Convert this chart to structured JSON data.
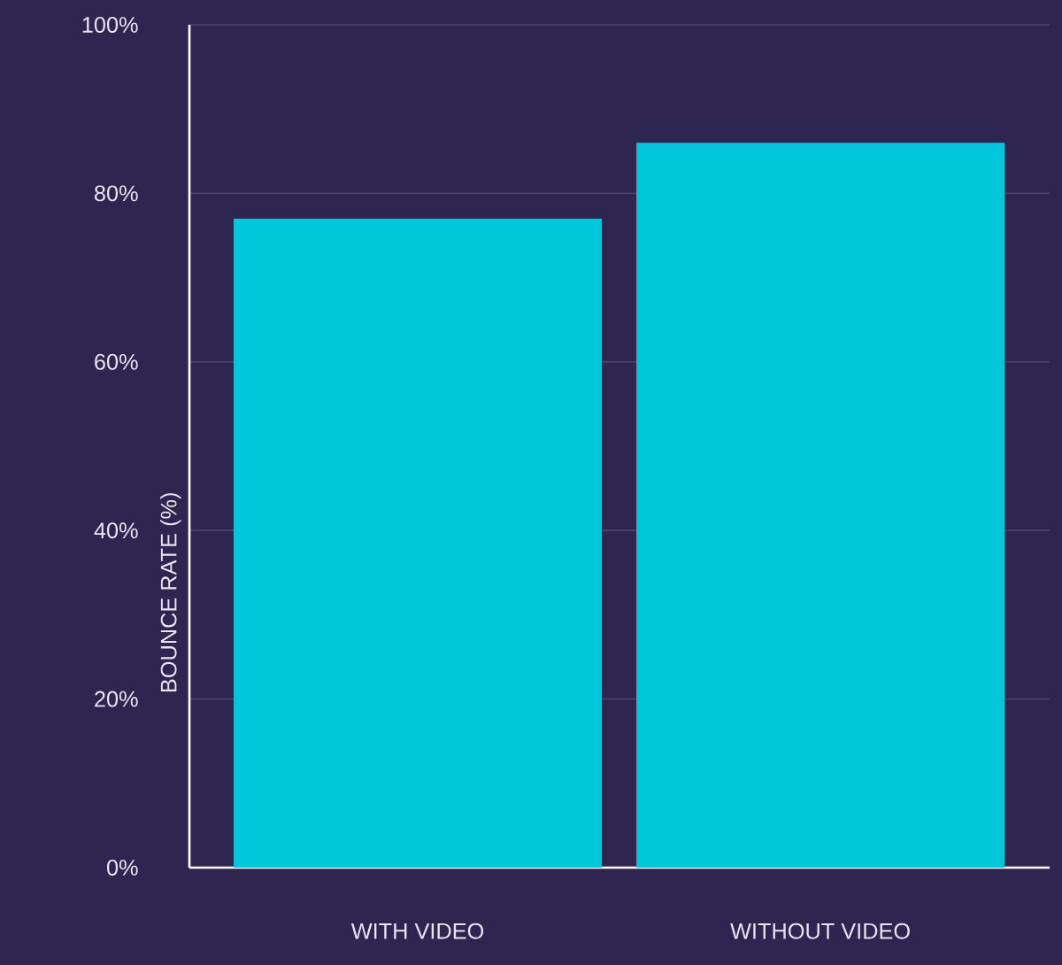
{
  "chart_data": {
    "type": "bar",
    "ylabel": "BOUNCE RATE (%)",
    "categories": [
      "WITH VIDEO",
      "WITHOUT VIDEO"
    ],
    "values": [
      77,
      86
    ],
    "color": "#00c8da",
    "ylim": [
      0,
      100
    ],
    "yticks": [
      {
        "value": 0,
        "label": "0%"
      },
      {
        "value": 20,
        "label": "20%"
      },
      {
        "value": 40,
        "label": "40%"
      },
      {
        "value": 60,
        "label": "60%"
      },
      {
        "value": 80,
        "label": "80%"
      },
      {
        "value": 100,
        "label": "100%"
      }
    ],
    "grid": "y"
  }
}
